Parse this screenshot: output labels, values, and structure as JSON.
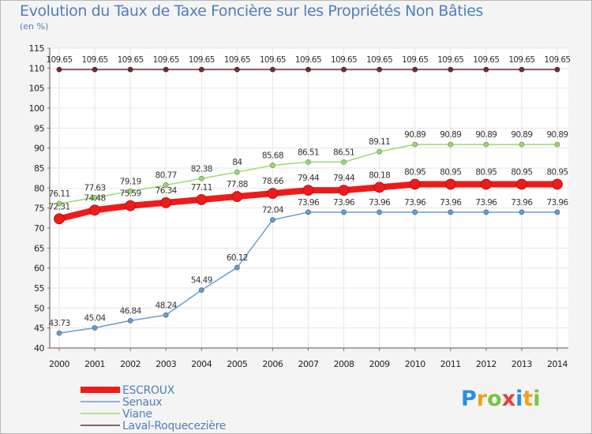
{
  "chart_data": {
    "type": "line",
    "title": "Evolution du Taux de Taxe Foncière sur les Propriétés Non Bâties",
    "subtitle": "(en %)",
    "xlabel": "",
    "ylabel": "",
    "x": [
      "2000",
      "2001",
      "2002",
      "2003",
      "2004",
      "2005",
      "2006",
      "2007",
      "2008",
      "2009",
      "2010",
      "2011",
      "2012",
      "2013",
      "2014"
    ],
    "ylim": [
      40,
      115
    ],
    "yticks": [
      40,
      45,
      50,
      55,
      60,
      65,
      70,
      75,
      80,
      85,
      90,
      95,
      100,
      105,
      110,
      115
    ],
    "grid": true,
    "legend_position": "bottom-left",
    "series": [
      {
        "name": "Laval-Roquecezière",
        "color": "#6b2f36",
        "values": [
          109.65,
          109.65,
          109.65,
          109.65,
          109.65,
          109.65,
          109.65,
          109.65,
          109.65,
          109.65,
          109.65,
          109.65,
          109.65,
          109.65,
          109.65
        ],
        "labels": [
          "109.65",
          "109.65",
          "109.65",
          "109.65",
          "109.65",
          "109.65",
          "109.65",
          "109.65",
          "109.65",
          "109.65",
          "109.65",
          "109.65",
          "109.65",
          "109.65",
          "109.65"
        ]
      },
      {
        "name": "Viane",
        "color": "#9bd972",
        "values": [
          76.11,
          77.63,
          79.19,
          80.77,
          82.38,
          84,
          85.68,
          86.51,
          86.51,
          89.11,
          90.89,
          90.89,
          90.89,
          90.89,
          90.89
        ],
        "labels": [
          "76.11",
          "77.63",
          "79.19",
          "80.77",
          "82.38",
          "84",
          "85.68",
          "86.51",
          "86.51",
          "89.11",
          "90.89",
          "90.89",
          "90.89",
          "90.89",
          "90.89"
        ]
      },
      {
        "name": "Senaux",
        "color": "#6a9dd0",
        "values": [
          43.73,
          45.04,
          46.84,
          48.24,
          54.49,
          60.12,
          72.04,
          73.96,
          73.96,
          73.96,
          73.96,
          73.96,
          73.96,
          73.96,
          73.96
        ],
        "labels": [
          "43.73",
          "45.04",
          "46.84",
          "48.24",
          "54.49",
          "60.12",
          "72.04",
          "73.96",
          "73.96",
          "73.96",
          "73.96",
          "73.96",
          "73.96",
          "73.96",
          "73.96"
        ]
      },
      {
        "name": "ESCROUX",
        "color": "#ee1b1b",
        "values": [
          72.31,
          74.48,
          75.59,
          76.34,
          77.11,
          77.88,
          78.66,
          79.44,
          79.44,
          80.18,
          80.95,
          80.95,
          80.95,
          80.95,
          80.95
        ],
        "labels": [
          "72.31",
          "74.48",
          "75.59",
          "76.34",
          "77.11",
          "77.88",
          "78.66",
          "79.44",
          "79.44",
          "80.18",
          "80.95",
          "80.95",
          "80.95",
          "80.95",
          "80.95"
        ]
      }
    ],
    "legend": [
      "ESCROUX",
      "Senaux",
      "Viane",
      "Laval-Roquecezière"
    ]
  },
  "logo": {
    "text": "Proxiti",
    "letters": [
      "P",
      "r",
      "o",
      "x",
      "i",
      "t",
      "i"
    ],
    "colors": [
      "#2b8fd8",
      "#f2a11a",
      "#7cc342",
      "#e63d3d",
      "#2b8fd8",
      "#f2a11a",
      "#7cc342"
    ]
  }
}
